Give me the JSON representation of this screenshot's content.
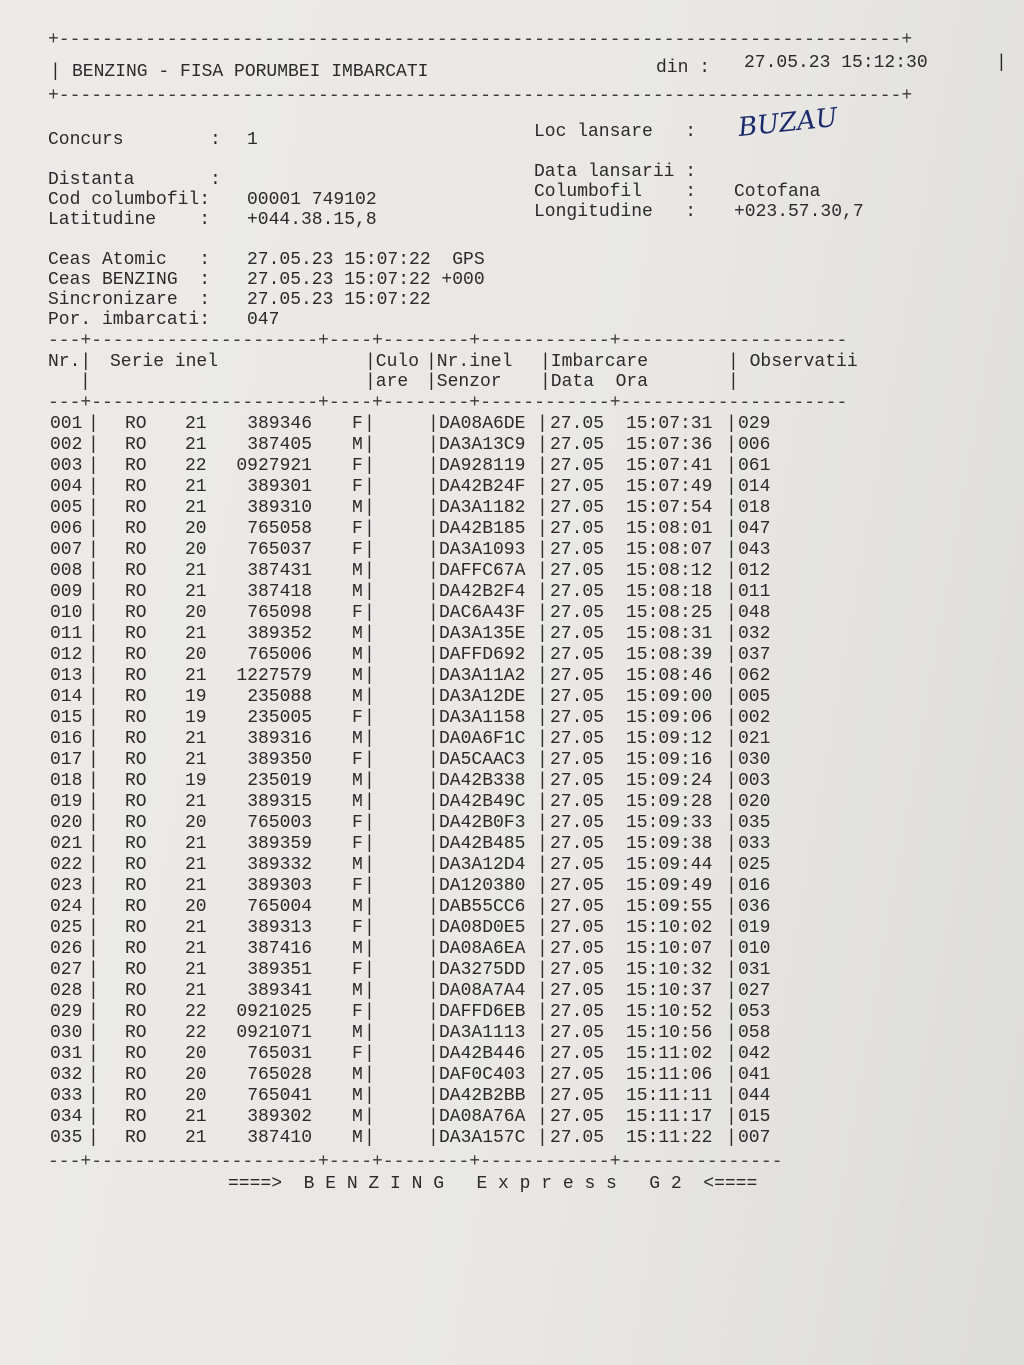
{
  "header": {
    "title": "BENZING - FISA PORUMBEI IMBARCATI",
    "din_label": "din :",
    "din_value": "27.05.23 15:12:30"
  },
  "info": {
    "concurs_label": "Concurs        : ",
    "concurs_value": "1",
    "distanta_label": "Distanta       :",
    "cod_label": "Cod columbofil: ",
    "cod_value": "00001 749102",
    "lat_label": "Latitudine    : ",
    "lat_value": "+044.38.15,8",
    "loc_label": "Loc lansare   :",
    "loc_value": "BUZAU",
    "data_lansarii_label": "Data lansarii :",
    "columbofil_label": "Columbofil    : ",
    "columbofil_value": "Cotofana",
    "long_label": "Longitudine   : ",
    "long_value": "+023.57.30,7",
    "ceas_atomic_label": "Ceas Atomic   : ",
    "ceas_atomic_value": "27.05.23 15:07:22  GPS",
    "ceas_benzing_label": "Ceas BENZING  : ",
    "ceas_benzing_value": "27.05.23 15:07:22 +000",
    "sincronizare_label": "Sincronizare  : ",
    "sincronizare_value": "27.05.23 15:07:22",
    "por_label": "Por. imbarcati: ",
    "por_value": "047"
  },
  "table": {
    "headers": {
      "nr": "Nr.|",
      "serie": "Serie inel",
      "culoare1": "|Culo",
      "culoare2": "|are",
      "nrinel1": "|Nr.inel",
      "nrinel2": "|Senzor",
      "imbarcare1": "|Imbarcare",
      "imbarcare2": "|Data  Ora",
      "observatii": "| Observatii"
    },
    "rows": [
      [
        "001",
        "RO",
        "21",
        "389346",
        "F",
        "DA08A6DE",
        "27.05",
        "15:07:31",
        "029"
      ],
      [
        "002",
        "RO",
        "21",
        "387405",
        "M",
        "DA3A13C9",
        "27.05",
        "15:07:36",
        "006"
      ],
      [
        "003",
        "RO",
        "22",
        "0927921",
        "F",
        "DA928119",
        "27.05",
        "15:07:41",
        "061"
      ],
      [
        "004",
        "RO",
        "21",
        "389301",
        "F",
        "DA42B24F",
        "27.05",
        "15:07:49",
        "014"
      ],
      [
        "005",
        "RO",
        "21",
        "389310",
        "M",
        "DA3A1182",
        "27.05",
        "15:07:54",
        "018"
      ],
      [
        "006",
        "RO",
        "20",
        "765058",
        "F",
        "DA42B185",
        "27.05",
        "15:08:01",
        "047"
      ],
      [
        "007",
        "RO",
        "20",
        "765037",
        "F",
        "DA3A1093",
        "27.05",
        "15:08:07",
        "043"
      ],
      [
        "008",
        "RO",
        "21",
        "387431",
        "M",
        "DAFFC67A",
        "27.05",
        "15:08:12",
        "012"
      ],
      [
        "009",
        "RO",
        "21",
        "387418",
        "M",
        "DA42B2F4",
        "27.05",
        "15:08:18",
        "011"
      ],
      [
        "010",
        "RO",
        "20",
        "765098",
        "F",
        "DAC6A43F",
        "27.05",
        "15:08:25",
        "048"
      ],
      [
        "011",
        "RO",
        "21",
        "389352",
        "M",
        "DA3A135E",
        "27.05",
        "15:08:31",
        "032"
      ],
      [
        "012",
        "RO",
        "20",
        "765006",
        "M",
        "DAFFD692",
        "27.05",
        "15:08:39",
        "037"
      ],
      [
        "013",
        "RO",
        "21",
        "1227579",
        "M",
        "DA3A11A2",
        "27.05",
        "15:08:46",
        "062"
      ],
      [
        "014",
        "RO",
        "19",
        "235088",
        "M",
        "DA3A12DE",
        "27.05",
        "15:09:00",
        "005"
      ],
      [
        "015",
        "RO",
        "19",
        "235005",
        "F",
        "DA3A1158",
        "27.05",
        "15:09:06",
        "002"
      ],
      [
        "016",
        "RO",
        "21",
        "389316",
        "M",
        "DA0A6F1C",
        "27.05",
        "15:09:12",
        "021"
      ],
      [
        "017",
        "RO",
        "21",
        "389350",
        "F",
        "DA5CAAC3",
        "27.05",
        "15:09:16",
        "030"
      ],
      [
        "018",
        "RO",
        "19",
        "235019",
        "M",
        "DA42B338",
        "27.05",
        "15:09:24",
        "003"
      ],
      [
        "019",
        "RO",
        "21",
        "389315",
        "M",
        "DA42B49C",
        "27.05",
        "15:09:28",
        "020"
      ],
      [
        "020",
        "RO",
        "20",
        "765003",
        "F",
        "DA42B0F3",
        "27.05",
        "15:09:33",
        "035"
      ],
      [
        "021",
        "RO",
        "21",
        "389359",
        "F",
        "DA42B485",
        "27.05",
        "15:09:38",
        "033"
      ],
      [
        "022",
        "RO",
        "21",
        "389332",
        "M",
        "DA3A12D4",
        "27.05",
        "15:09:44",
        "025"
      ],
      [
        "023",
        "RO",
        "21",
        "389303",
        "F",
        "DA120380",
        "27.05",
        "15:09:49",
        "016"
      ],
      [
        "024",
        "RO",
        "20",
        "765004",
        "M",
        "DAB55CC6",
        "27.05",
        "15:09:55",
        "036"
      ],
      [
        "025",
        "RO",
        "21",
        "389313",
        "F",
        "DA08D0E5",
        "27.05",
        "15:10:02",
        "019"
      ],
      [
        "026",
        "RO",
        "21",
        "387416",
        "M",
        "DA08A6EA",
        "27.05",
        "15:10:07",
        "010"
      ],
      [
        "027",
        "RO",
        "21",
        "389351",
        "F",
        "DA3275DD",
        "27.05",
        "15:10:32",
        "031"
      ],
      [
        "028",
        "RO",
        "21",
        "389341",
        "M",
        "DA08A7A4",
        "27.05",
        "15:10:37",
        "027"
      ],
      [
        "029",
        "RO",
        "22",
        "0921025",
        "F",
        "DAFFD6EB",
        "27.05",
        "15:10:52",
        "053"
      ],
      [
        "030",
        "RO",
        "22",
        "0921071",
        "M",
        "DA3A1113",
        "27.05",
        "15:10:56",
        "058"
      ],
      [
        "031",
        "RO",
        "20",
        "765031",
        "F",
        "DA42B446",
        "27.05",
        "15:11:02",
        "042"
      ],
      [
        "032",
        "RO",
        "20",
        "765028",
        "M",
        "DAF0C403",
        "27.05",
        "15:11:06",
        "041"
      ],
      [
        "033",
        "RO",
        "20",
        "765041",
        "M",
        "DA42B2BB",
        "27.05",
        "15:11:11",
        "044"
      ],
      [
        "034",
        "RO",
        "21",
        "389302",
        "M",
        "DA08A76A",
        "27.05",
        "15:11:17",
        "015"
      ],
      [
        "035",
        "RO",
        "21",
        "387410",
        "M",
        "DA3A157C",
        "27.05",
        "15:11:22",
        "007"
      ]
    ]
  },
  "footer": {
    "text": "====>  B E N Z I N G   E x p r e s s   G 2  <===="
  }
}
